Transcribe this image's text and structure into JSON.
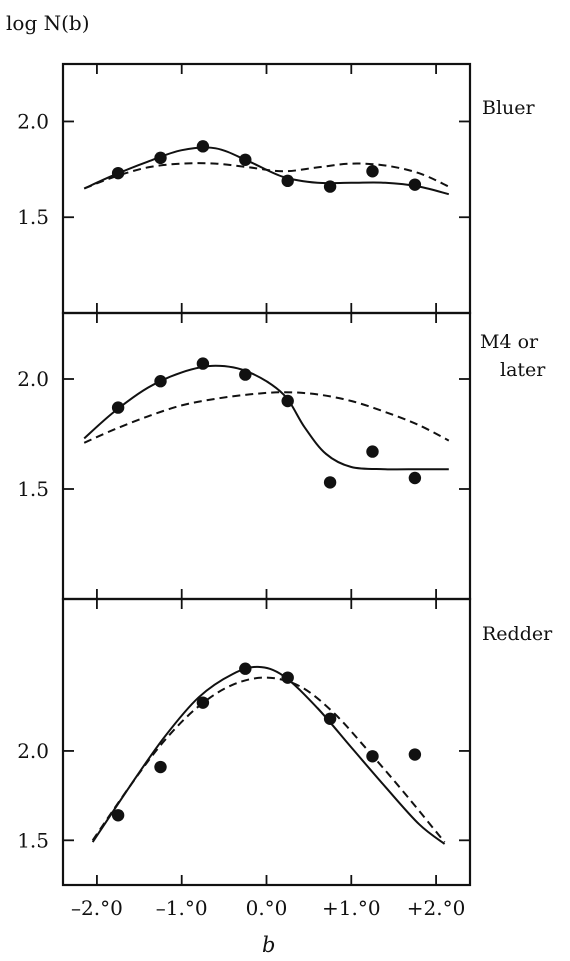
{
  "figure": {
    "y_axis_title": "log N(b)",
    "x_axis_title": "b"
  },
  "chart_data": [
    {
      "type": "scatter",
      "panel_label": [
        "Bluer"
      ],
      "xlim": [
        -2.4,
        2.4
      ],
      "ylim": [
        1.0,
        2.3
      ],
      "yticks": [
        2.0,
        1.5
      ],
      "ytick_labels": [
        "2.0",
        "1.5"
      ],
      "points": {
        "x": [
          -1.75,
          -1.25,
          -0.75,
          -0.25,
          0.25,
          0.75,
          1.25,
          1.75
        ],
        "y": [
          1.73,
          1.81,
          1.87,
          1.8,
          1.69,
          1.66,
          1.74,
          1.67
        ]
      },
      "solid_curve": {
        "x": [
          -2.15,
          -1.8,
          -1.4,
          -1.0,
          -0.6,
          -0.2,
          0.2,
          0.6,
          1.0,
          1.4,
          1.8,
          2.15
        ],
        "y": [
          1.65,
          1.72,
          1.79,
          1.85,
          1.86,
          1.79,
          1.71,
          1.68,
          1.68,
          1.68,
          1.66,
          1.62
        ]
      },
      "dashed_curve": {
        "x": [
          -2.15,
          -1.8,
          -1.4,
          -1.0,
          -0.6,
          -0.2,
          0.2,
          0.6,
          1.0,
          1.4,
          1.8,
          2.15
        ],
        "y": [
          1.65,
          1.71,
          1.76,
          1.78,
          1.78,
          1.76,
          1.74,
          1.76,
          1.78,
          1.77,
          1.73,
          1.66
        ]
      }
    },
    {
      "type": "scatter",
      "panel_label": [
        "M4 or",
        "later"
      ],
      "xlim": [
        -2.4,
        2.4
      ],
      "ylim": [
        1.0,
        2.3
      ],
      "yticks": [
        2.0,
        1.5
      ],
      "ytick_labels": [
        "2.0",
        "1.5"
      ],
      "points": {
        "x": [
          -1.75,
          -1.25,
          -0.75,
          -0.25,
          0.25,
          0.75,
          1.25,
          1.75
        ],
        "y": [
          1.87,
          1.99,
          2.07,
          2.02,
          1.9,
          1.53,
          1.67,
          1.55
        ]
      },
      "solid_curve": {
        "x": [
          -2.15,
          -1.8,
          -1.4,
          -1.0,
          -0.6,
          -0.2,
          0.2,
          0.45,
          0.7,
          1.0,
          1.4,
          1.8,
          2.15
        ],
        "y": [
          1.73,
          1.85,
          1.96,
          2.03,
          2.06,
          2.03,
          1.93,
          1.78,
          1.66,
          1.6,
          1.59,
          1.59,
          1.59
        ]
      },
      "dashed_curve": {
        "x": [
          -2.15,
          -1.8,
          -1.4,
          -1.0,
          -0.6,
          -0.2,
          0.2,
          0.6,
          1.0,
          1.4,
          1.8,
          2.15
        ],
        "y": [
          1.71,
          1.77,
          1.83,
          1.88,
          1.91,
          1.93,
          1.94,
          1.93,
          1.9,
          1.85,
          1.79,
          1.72
        ]
      }
    },
    {
      "type": "scatter",
      "panel_label": [
        "Redder"
      ],
      "xlim": [
        -2.4,
        2.4
      ],
      "ylim": [
        1.25,
        2.85
      ],
      "yticks": [
        2.0,
        1.5
      ],
      "ytick_labels": [
        "2.0",
        "1.5"
      ],
      "points": {
        "x": [
          -1.75,
          -1.25,
          -0.75,
          -0.25,
          0.25,
          0.75,
          1.25,
          1.75
        ],
        "y": [
          1.64,
          1.91,
          2.27,
          2.46,
          2.41,
          2.18,
          1.97,
          1.98
        ]
      },
      "solid_curve": {
        "x": [
          -2.05,
          -1.6,
          -1.2,
          -0.8,
          -0.4,
          -0.1,
          0.2,
          0.6,
          1.0,
          1.4,
          1.8,
          2.1
        ],
        "y": [
          1.49,
          1.81,
          2.08,
          2.3,
          2.43,
          2.47,
          2.42,
          2.24,
          2.02,
          1.8,
          1.59,
          1.48
        ]
      },
      "dashed_curve": {
        "x": [
          -2.05,
          -1.6,
          -1.2,
          -0.8,
          -0.4,
          0.0,
          0.4,
          0.8,
          1.2,
          1.6,
          2.1
        ],
        "y": [
          1.5,
          1.81,
          2.06,
          2.25,
          2.37,
          2.41,
          2.36,
          2.21,
          2.0,
          1.78,
          1.49
        ]
      }
    }
  ],
  "x_axis": {
    "ticks": [
      -2.0,
      -1.0,
      0.0,
      1.0,
      2.0
    ],
    "tick_labels": [
      "–2.°0",
      "–1.°0",
      "0.°0",
      "+1.°0",
      "+2.°0"
    ]
  }
}
